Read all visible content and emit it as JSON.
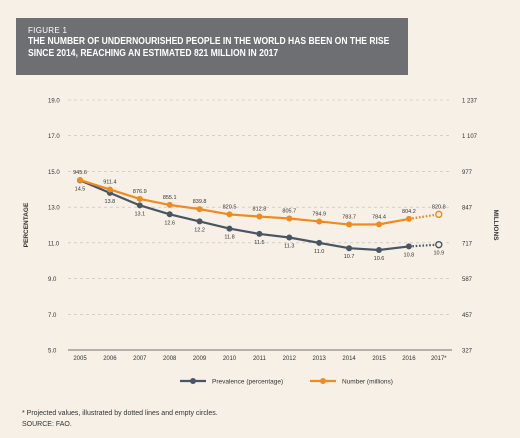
{
  "figure": {
    "label": "FIGURE 1",
    "title_line1": "THE NUMBER OF UNDERNOURISHED PEOPLE IN THE WORLD HAS BEEN ON THE RISE",
    "title_line2": "SINCE 2014, REACHING AN ESTIMATED 821 MILLION IN 2017"
  },
  "footnotes": {
    "note": "* Projected values, illustrated by dotted lines and empty circles.",
    "source": "SOURCE: FAO."
  },
  "colors": {
    "prevalence": "#4a5563",
    "number": "#ee8a1f",
    "header_bg": "#6d6f72",
    "page_bg": "#f6f0e6"
  },
  "chart_data": {
    "type": "line",
    "categories": [
      "2005",
      "2006",
      "2007",
      "2008",
      "2009",
      "2010",
      "2011",
      "2012",
      "2013",
      "2014",
      "2015",
      "2016",
      "2017*"
    ],
    "ylabel": "PERCENTAGE",
    "y2label": "MILLIONS",
    "ylim": [
      5.0,
      19.0
    ],
    "y_ticks": [
      "5.0",
      "7.0",
      "9.0",
      "11.0",
      "13.0",
      "15.0",
      "17.0",
      "19.0"
    ],
    "y2lim": [
      327,
      1237
    ],
    "y2_ticks": [
      "327",
      "457",
      "587",
      "717",
      "847",
      "977",
      "1 107",
      "1 237"
    ],
    "grid": true,
    "projected_from_index": 11,
    "series": [
      {
        "name": "Prevalence (percentage)",
        "axis": "left",
        "values": [
          14.5,
          13.8,
          13.1,
          12.6,
          12.2,
          11.8,
          11.5,
          11.3,
          11.0,
          10.7,
          10.6,
          10.8,
          10.9
        ],
        "labels": [
          "14.5",
          "13.8",
          "13.1",
          "12.6",
          "12.2",
          "11.8",
          "11.5",
          "11.3",
          "11.0",
          "10.7",
          "10.6",
          "10.8",
          "10.9"
        ]
      },
      {
        "name": "Number (millions)",
        "axis": "right",
        "values": [
          945.6,
          911.4,
          876.9,
          855.1,
          839.8,
          820.5,
          812.8,
          805.7,
          794.9,
          783.7,
          784.4,
          804.2,
          820.8
        ],
        "labels": [
          "945.6",
          "911.4",
          "876.9",
          "855.1",
          "839.8",
          "820.5",
          "812.8",
          "805.7",
          "794.9",
          "783.7",
          "784.4",
          "804.2",
          "820.8"
        ]
      }
    ],
    "legend_position": "bottom"
  }
}
